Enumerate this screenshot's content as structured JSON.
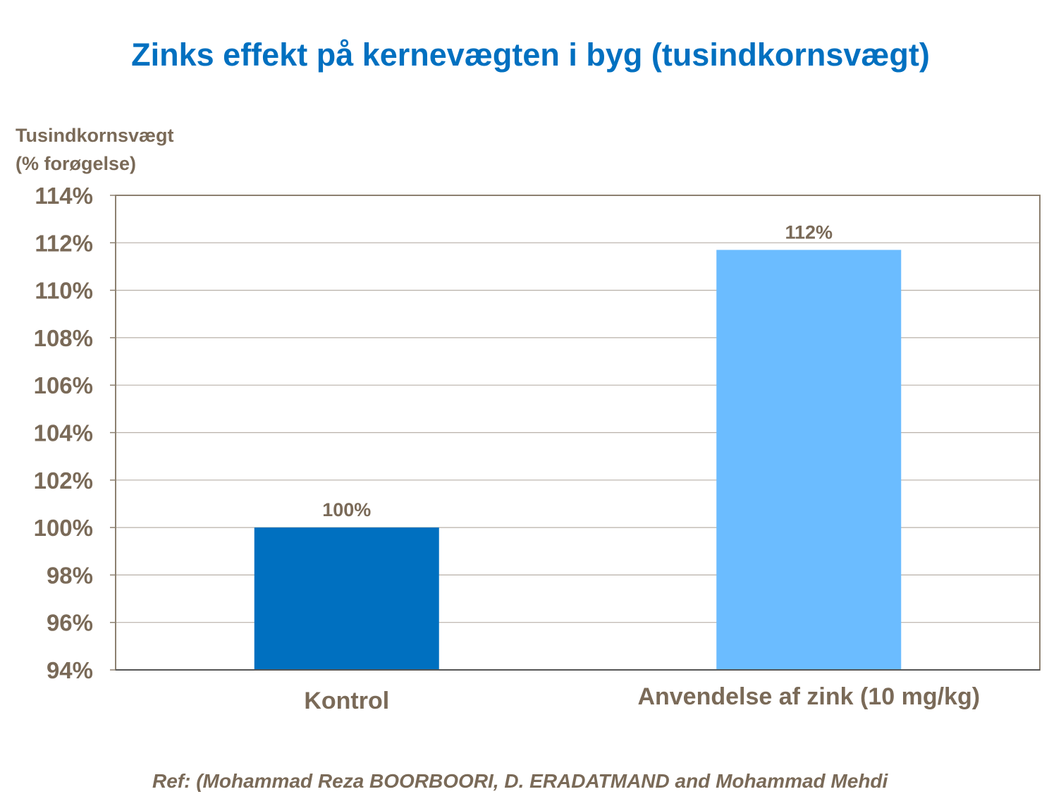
{
  "chart_data": {
    "type": "bar",
    "title": "Zinks effekt på kernevægten i byg (tusindkornsvægt)",
    "ylabel_lines": [
      "Tusindkornsvægt",
      "(% forøgelse)"
    ],
    "xlabel": "",
    "categories": [
      "Kontrol",
      "Anvendelse af zink (10 mg/kg)"
    ],
    "values": [
      100,
      111.7
    ],
    "data_labels": [
      "100%",
      "112%"
    ],
    "bar_colors": [
      "#0070C0",
      "#6BBCFF"
    ],
    "ylim": [
      94,
      114
    ],
    "yticks": [
      94,
      96,
      98,
      100,
      102,
      104,
      106,
      108,
      110,
      112,
      114
    ],
    "ytick_labels": [
      "94%",
      "96%",
      "98%",
      "100%",
      "102%",
      "104%",
      "106%",
      "108%",
      "110%",
      "112%",
      "114%"
    ],
    "grid": true,
    "legend": "none"
  },
  "colors": {
    "title": "#0070C0",
    "text": "#7A6A58",
    "grid": "#B8B0A8",
    "frame": "#8C8070"
  },
  "reference": "Ref: (Mohammad Reza BOORBOORI, D. ERADATMAND and Mohammad Mehdi"
}
